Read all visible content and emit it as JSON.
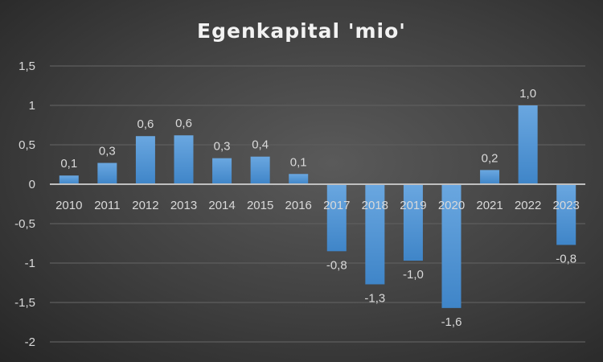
{
  "chart_data": {
    "type": "bar",
    "title": "Egenkapital 'mio'",
    "xlabel": "",
    "ylabel": "",
    "ylim": [
      -2,
      1.5
    ],
    "yticks": [
      1.5,
      1,
      0.5,
      0,
      -0.5,
      -1,
      -1.5,
      -2
    ],
    "ytick_labels": [
      "1,5",
      "1",
      "0,5",
      "0",
      "-0,5",
      "-1",
      "-1,5",
      "-2"
    ],
    "grid": true,
    "categories": [
      "2010",
      "2011",
      "2012",
      "2013",
      "2014",
      "2015",
      "2016",
      "2017",
      "2018",
      "2019",
      "2020",
      "2021",
      "2022",
      "2023"
    ],
    "values": [
      0.11,
      0.27,
      0.61,
      0.62,
      0.33,
      0.35,
      0.13,
      -0.85,
      -1.27,
      -0.97,
      -1.57,
      0.18,
      1.0,
      -0.77
    ],
    "data_labels": [
      "0,1",
      "0,3",
      "0,6",
      "0,6",
      "0,3",
      "0,4",
      "0,1",
      "-0,8",
      "-1,3",
      "-1,0",
      "-1,6",
      "0,2",
      "1,0",
      "-0,8"
    ],
    "bar_color": "#5b9bd5"
  }
}
